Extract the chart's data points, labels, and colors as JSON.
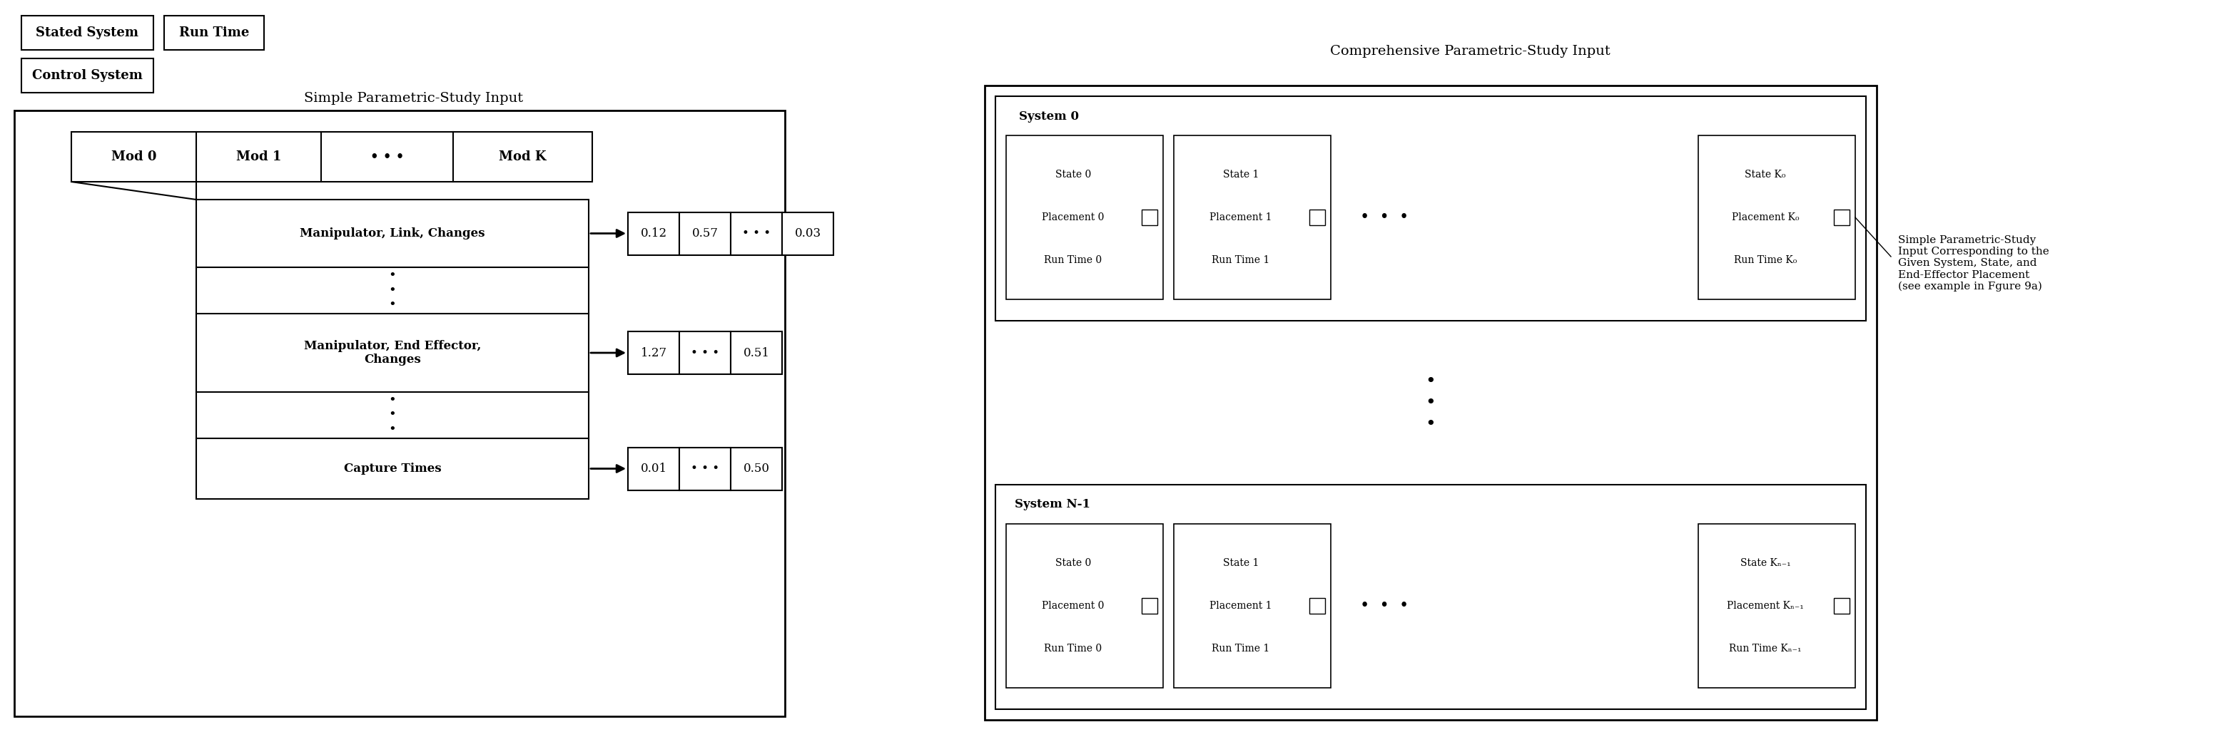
{
  "bg_color": "#ffffff",
  "title_simple": "Simple Parametric-Study Input",
  "title_comprehensive": "Comprehensive Parametric-Study Input",
  "mod_labels": [
    "Mod 0",
    "Mod 1",
    "• • •",
    "Mod K"
  ],
  "row_labels": [
    "Manipulator, Link, Changes",
    "•\n•\n•",
    "Manipulator, End Effector,\nChanges",
    "•\n•\n•",
    "Capture Times"
  ],
  "vals_row0": [
    "0.12",
    "0.57",
    "• • •",
    "0.03"
  ],
  "vals_row2": [
    "1.27",
    "• • •",
    "0.51"
  ],
  "vals_row4": [
    "0.01",
    "• • •",
    "0.50"
  ],
  "state_labels_sys0": [
    "State 0\nPlacement 0\nRun Time 0",
    "State 1\nPlacement 1\nRun Time 1",
    "•  •  •",
    "State K₀\nPlacement K₀\nRun Time K₀"
  ],
  "state_labels_sysN": [
    "State 0\nPlacement 0\nRun Time 0",
    "State 1\nPlacement 1\nRun Time 1",
    "•  •  •",
    "State Kₙ₋₁\nPlacement Kₙ₋₁\nRun Time Kₙ₋₁"
  ],
  "side_note": "Simple Parametric-Study\nInput Corresponding to the\nGiven System, State, and\nEnd-Effector Placement\n(see example in Fgure 9a)"
}
